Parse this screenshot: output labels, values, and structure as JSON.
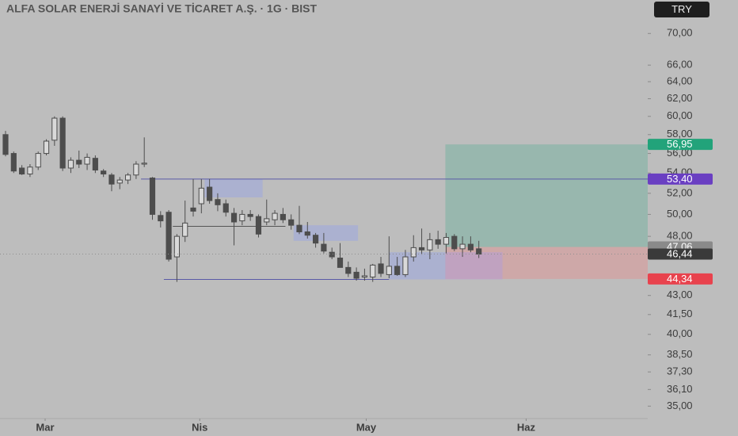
{
  "chart_data": {
    "type": "candlestick",
    "title": "ALFA SOLAR ENERJİ SANAYİ VE TİCARET A.Ş. · 1G · BIST",
    "currency": "TRY",
    "log_scale": true,
    "ylim": [
      34.2,
      74.5
    ],
    "yticks": [
      {
        "value": 70,
        "label": "70,00"
      },
      {
        "value": 66,
        "label": "66,00"
      },
      {
        "value": 64,
        "label": "64,00"
      },
      {
        "value": 62,
        "label": "62,00"
      },
      {
        "value": 60,
        "label": "60,00"
      },
      {
        "value": 58,
        "label": "58,00"
      },
      {
        "value": 56,
        "label": "56,00"
      },
      {
        "value": 54,
        "label": "54,00"
      },
      {
        "value": 52,
        "label": "52,00"
      },
      {
        "value": 50,
        "label": "50,00"
      },
      {
        "value": 48,
        "label": "48,00"
      },
      {
        "value": 43,
        "label": "43,00"
      },
      {
        "value": 41.5,
        "label": "41,50"
      },
      {
        "value": 40,
        "label": "40,00"
      },
      {
        "value": 38.5,
        "label": "38,50"
      },
      {
        "value": 37.3,
        "label": "37,30"
      },
      {
        "value": 36.1,
        "label": "36,10"
      },
      {
        "value": 35,
        "label": "35,00"
      }
    ],
    "xlim": [
      -0.68,
      78.7
    ],
    "xticks": [
      {
        "value": 4.85,
        "label": "Mar"
      },
      {
        "value": 23.8,
        "label": "Nis"
      },
      {
        "value": 44.2,
        "label": "May"
      },
      {
        "value": 63.8,
        "label": "Haz"
      }
    ],
    "up_color": "#d9d9d9",
    "down_color": "#4d4d4d",
    "x": [
      0,
      1,
      2,
      3,
      4,
      5,
      6,
      7,
      8,
      9,
      10,
      11,
      12,
      13,
      14,
      15,
      16,
      17,
      18,
      19,
      20,
      21,
      22,
      23,
      24,
      25,
      26,
      27,
      28,
      29,
      30,
      31,
      32,
      33,
      34,
      35,
      36,
      37,
      38,
      39,
      40,
      41,
      42,
      43,
      44,
      45,
      46,
      47,
      48,
      49,
      50,
      51,
      52,
      53,
      54,
      55,
      56,
      57,
      58
    ],
    "open": [
      58.0,
      56.0,
      54.5,
      53.9,
      54.6,
      56.0,
      57.4,
      59.8,
      54.5,
      55.3,
      54.9,
      55.5,
      54.2,
      53.8,
      53.0,
      53.3,
      53.8,
      54.9,
      53.5,
      49.9,
      50.2,
      46.2,
      48.0,
      50.6,
      51.0,
      52.6,
      51.4,
      51.0,
      50.1,
      49.4,
      50.0,
      49.8,
      49.3,
      49.5,
      50.0,
      49.5,
      49.0,
      48.4,
      48.1,
      47.3,
      46.6,
      46.1,
      45.3,
      44.9,
      44.5,
      44.5,
      45.6,
      44.7,
      45.4,
      44.7,
      46.2,
      47.0,
      46.8,
      47.7,
      47.3,
      48.0,
      46.9,
      47.3,
      46.9
    ],
    "high": [
      58.4,
      56.2,
      54.8,
      54.9,
      56.2,
      57.5,
      60.0,
      60.0,
      55.6,
      56.3,
      56.0,
      55.8,
      54.4,
      54.0,
      53.6,
      54.0,
      55.2,
      57.7,
      53.6,
      50.3,
      50.4,
      48.2,
      51.3,
      53.4,
      53.4,
      53.4,
      52.0,
      51.4,
      50.6,
      50.4,
      50.4,
      50.0,
      51.4,
      50.4,
      50.6,
      50.0,
      50.8,
      49.3,
      48.3,
      48.3,
      47.0,
      47.4,
      45.8,
      45.3,
      45.2,
      45.6,
      46.2,
      48.0,
      46.2,
      46.8,
      48.1,
      48.7,
      48.3,
      48.5,
      48.3,
      48.2,
      48.0,
      48.0,
      47.6
    ],
    "low": [
      55.7,
      54.0,
      53.8,
      53.6,
      54.3,
      55.8,
      56.8,
      54.2,
      54.0,
      54.5,
      54.3,
      54.0,
      53.6,
      52.2,
      52.4,
      52.9,
      53.4,
      54.6,
      49.5,
      48.8,
      45.8,
      44.1,
      47.5,
      49.8,
      50.1,
      51.0,
      50.3,
      49.8,
      47.2,
      49.0,
      49.4,
      47.9,
      49.0,
      49.0,
      49.2,
      48.6,
      48.2,
      47.8,
      47.0,
      46.5,
      46.0,
      45.3,
      44.5,
      44.2,
      44.2,
      44.1,
      44.5,
      44.4,
      44.6,
      44.5,
      45.8,
      46.4,
      46.0,
      46.9,
      46.5,
      46.7,
      46.2,
      46.6,
      46.1
    ],
    "close": [
      55.9,
      54.2,
      53.9,
      54.6,
      56.0,
      57.3,
      59.8,
      54.5,
      55.3,
      54.9,
      55.6,
      54.3,
      53.9,
      52.9,
      53.3,
      53.8,
      54.9,
      55.0,
      50.0,
      49.4,
      46.0,
      48.0,
      49.2,
      50.3,
      52.5,
      51.3,
      50.9,
      50.2,
      49.3,
      50.0,
      49.8,
      48.2,
      49.6,
      50.1,
      49.5,
      49.0,
      48.4,
      48.1,
      47.4,
      46.7,
      46.2,
      45.3,
      44.8,
      44.4,
      44.6,
      45.5,
      44.8,
      45.4,
      44.7,
      46.2,
      47.0,
      46.8,
      47.7,
      47.3,
      47.9,
      46.9,
      47.3,
      46.8,
      46.44
    ],
    "zones": [
      {
        "x0": 53.9,
        "x1": 78.7,
        "low": 47.06,
        "high": 56.95,
        "color": "#7fb3a3"
      },
      {
        "x0": 53.9,
        "x1": 78.7,
        "low": 44.34,
        "high": 47.06,
        "color": "#d89a9a"
      },
      {
        "x0": 24.4,
        "x1": 31.5,
        "low": 51.6,
        "high": 53.4,
        "color": "#9fa8dc"
      },
      {
        "x0": 35.3,
        "x1": 43.2,
        "low": 47.6,
        "high": 49.0,
        "color": "#9fa8dc"
      },
      {
        "x0": 47.0,
        "x1": 53.9,
        "low": 44.3,
        "high": 46.6,
        "color": "#9fa8dc"
      },
      {
        "x0": 53.9,
        "x1": 60.9,
        "low": 44.3,
        "high": 46.6,
        "color": "#b79fd0"
      }
    ],
    "lines": [
      {
        "price": 53.4,
        "x0": 16.6,
        "x1": 78.7,
        "color": "#5b5ba8"
      },
      {
        "price": 48.9,
        "x0": 20.5,
        "x1": 34.3,
        "color": "#555555"
      },
      {
        "price": 44.3,
        "x0": 19.4,
        "x1": 47.0,
        "color": "#5b5ba8"
      }
    ],
    "price_labels": [
      {
        "value": 56.95,
        "label": "56,95",
        "color": "#22a37a"
      },
      {
        "value": 53.4,
        "label": "53,40",
        "color": "#6a3fc2"
      },
      {
        "value": 47.06,
        "label": "47,06",
        "color": "#8a8a8a"
      },
      {
        "value": 46.44,
        "label": "46,44",
        "color": "#3a3a3a"
      },
      {
        "value": 44.34,
        "label": "44,34",
        "color": "#e8424d"
      }
    ]
  }
}
